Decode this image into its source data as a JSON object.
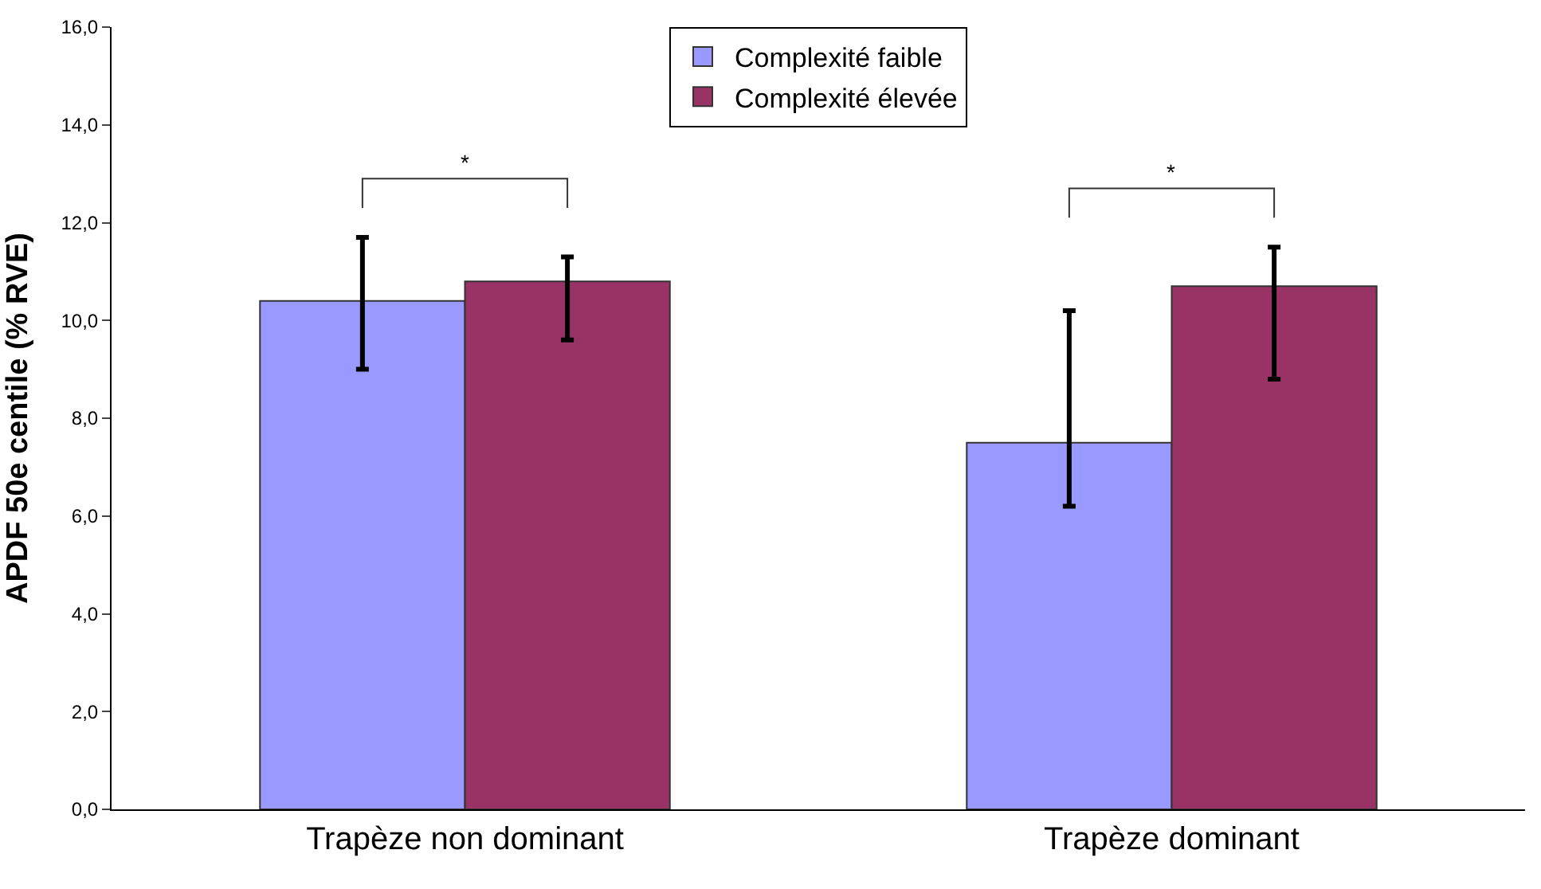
{
  "chart_data": {
    "type": "bar",
    "ylabel": "APDF 50e centile (% RVE)",
    "categories": [
      "Trapèze non dominant",
      "Trapèze dominant"
    ],
    "series": [
      {
        "name": "Complexité faible",
        "color": "#9999ff",
        "values": [
          10.4,
          7.5
        ],
        "errors": [
          [
            9.0,
            11.7
          ],
          [
            6.2,
            10.2
          ]
        ]
      },
      {
        "name": "Complexité élevée",
        "color": "#993366",
        "values": [
          10.8,
          10.7
        ],
        "errors": [
          [
            9.6,
            11.3
          ],
          [
            8.8,
            11.5
          ]
        ]
      }
    ],
    "ylim": [
      0,
      16
    ],
    "yticks": [
      {
        "value": 0,
        "label": "0,0"
      },
      {
        "value": 2,
        "label": "2,0"
      },
      {
        "value": 4,
        "label": "4,0"
      },
      {
        "value": 6,
        "label": "6,0"
      },
      {
        "value": 8,
        "label": "8,0"
      },
      {
        "value": 10,
        "label": "10,0"
      },
      {
        "value": 12,
        "label": "12,0"
      },
      {
        "value": 14,
        "label": "14,0"
      },
      {
        "value": 16,
        "label": "16,0"
      }
    ],
    "annotations": [
      "*",
      "*"
    ],
    "legend": "top"
  }
}
